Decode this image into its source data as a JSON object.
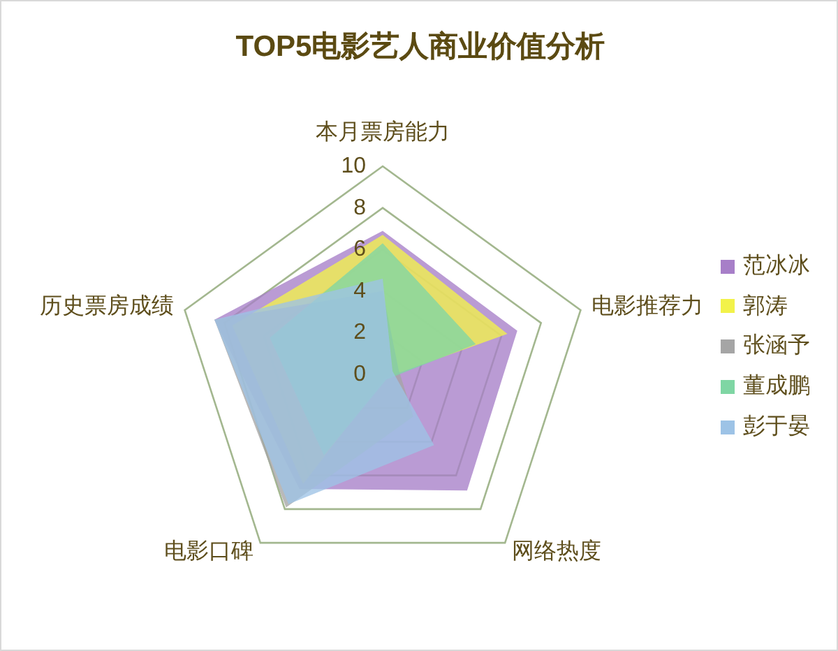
{
  "chart_data": {
    "type": "radar",
    "title": "TOP5电影艺人商业价值分析",
    "categories": [
      "本月票房能力",
      "电影推荐力",
      "网络热度",
      "电影口碑",
      "历史票房成绩"
    ],
    "series": [
      {
        "name": "范冰冰",
        "color": "#a77fc8",
        "values": [
          6.9,
          6.8,
          6.9,
          6.8,
          8.5
        ]
      },
      {
        "name": "郭涛",
        "color": "#f2f24a",
        "values": [
          6.7,
          6.3,
          0.2,
          6.5,
          7.6
        ]
      },
      {
        "name": "张涵予",
        "color": "#a5a5a5",
        "values": [
          4.0,
          0.8,
          2.5,
          7.9,
          8.5
        ]
      },
      {
        "name": "董成鹏",
        "color": "#7fd6a4",
        "values": [
          6.3,
          4.7,
          0.3,
          4.8,
          5.7
        ]
      },
      {
        "name": "彭于晏",
        "color": "#9dc3e6",
        "values": [
          4.6,
          0.5,
          4.2,
          7.7,
          8.5
        ]
      }
    ],
    "ylim": [
      0,
      10
    ],
    "yticks": [
      0,
      2,
      4,
      6,
      8,
      10
    ],
    "grid": true,
    "legend": "right"
  }
}
